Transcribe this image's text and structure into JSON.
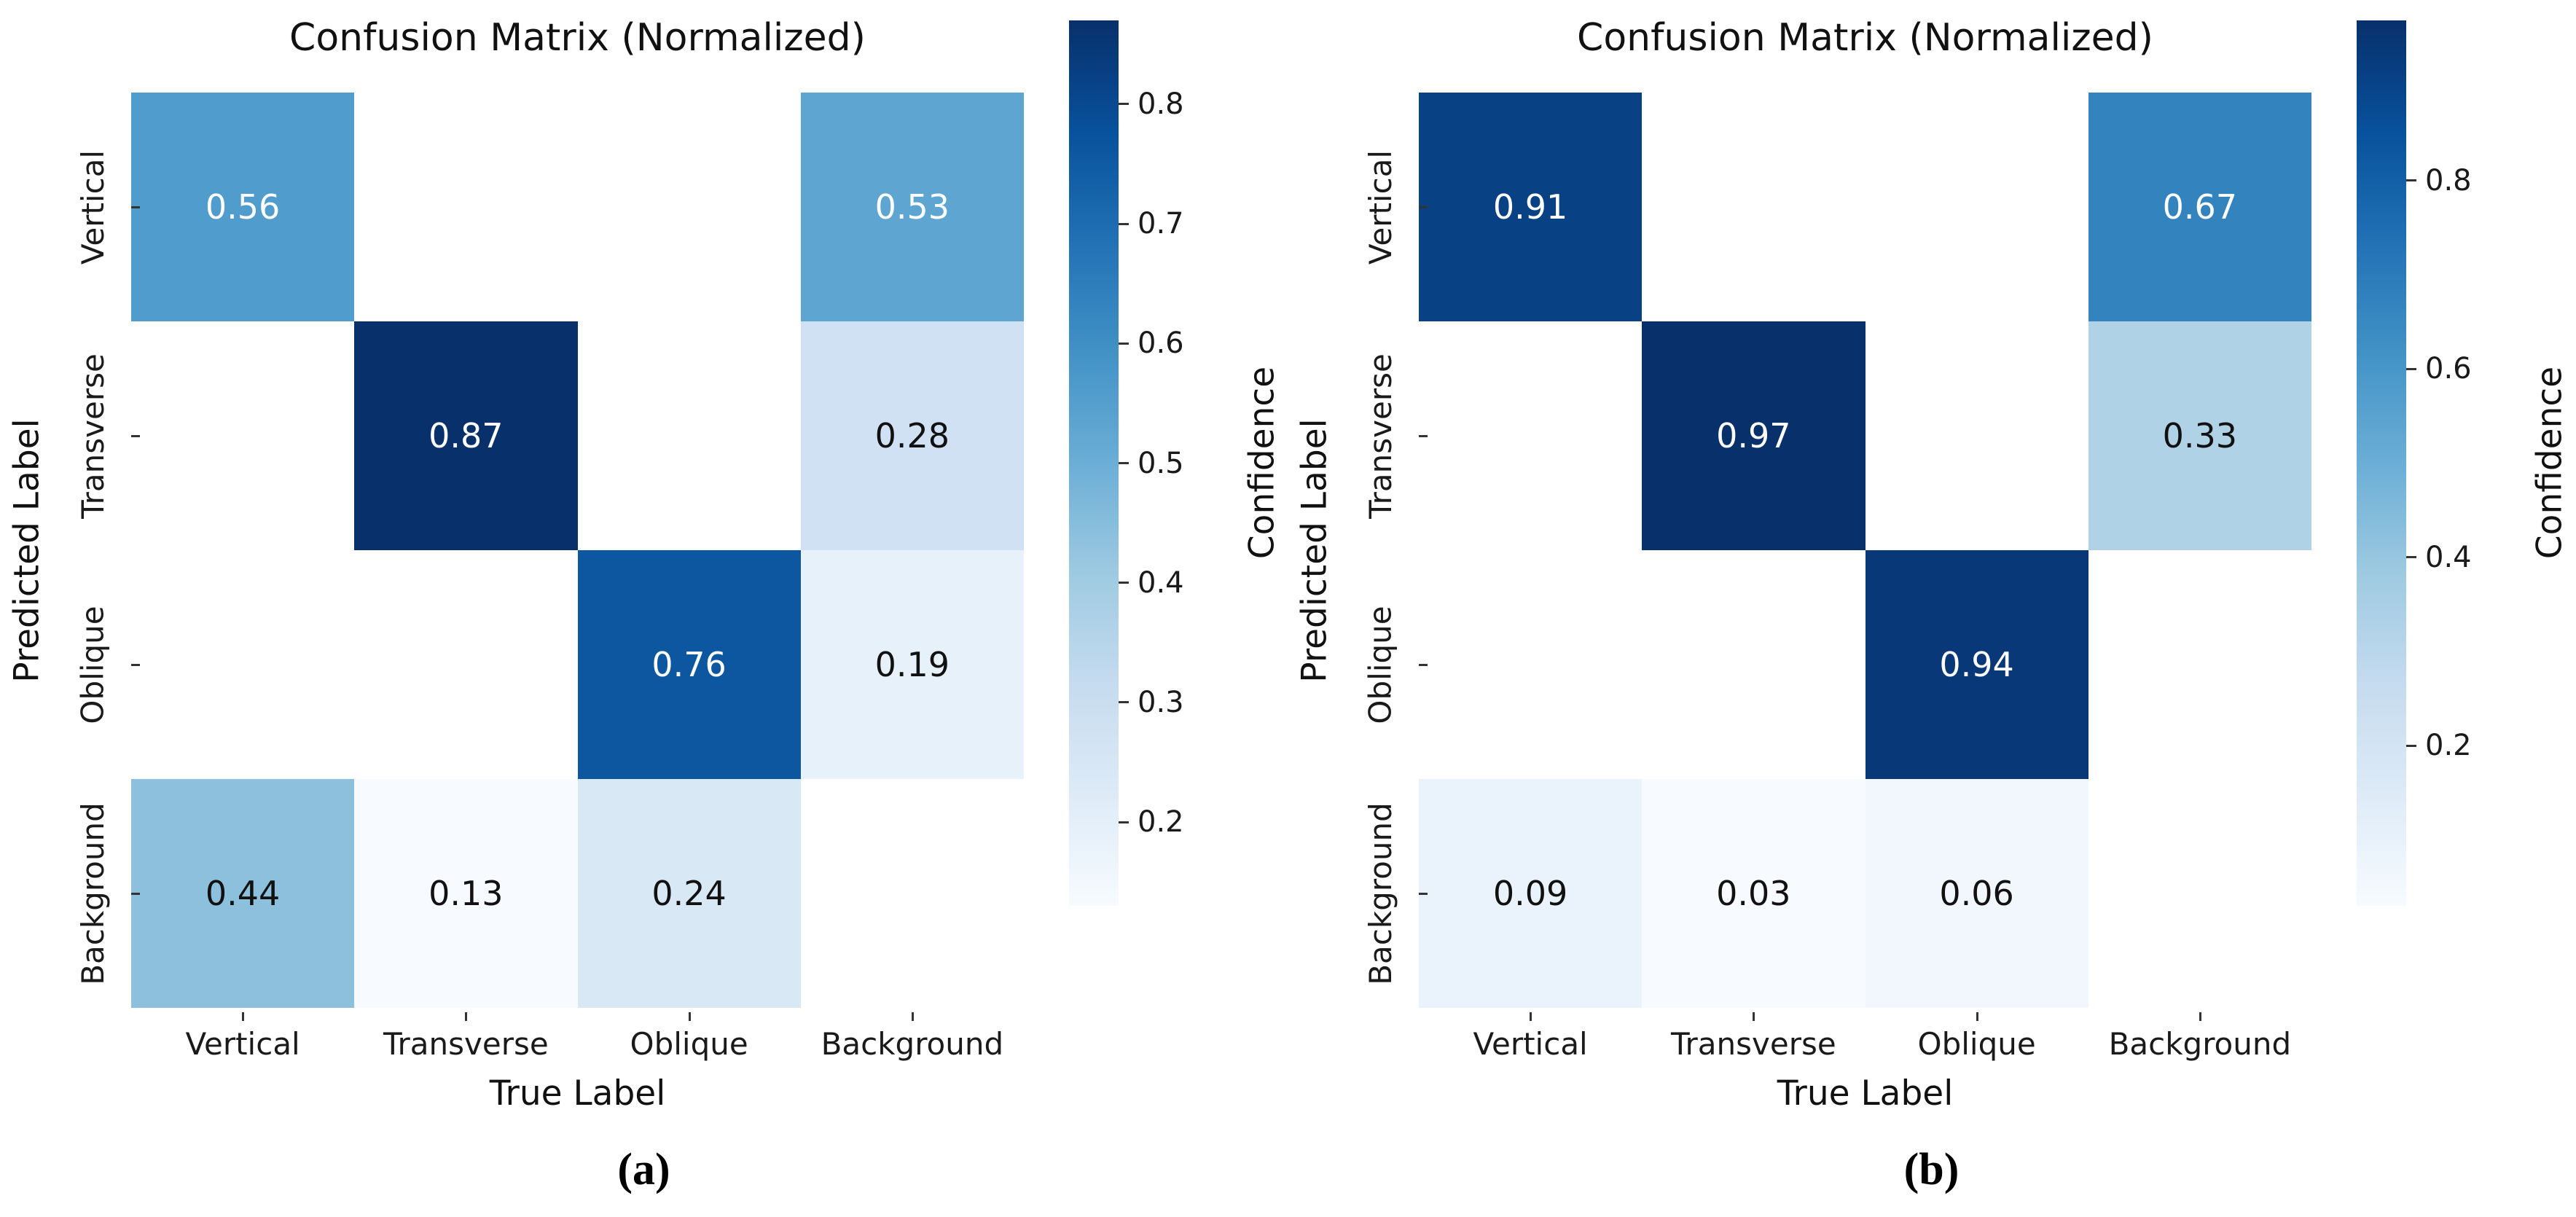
{
  "chart_data": [
    {
      "type": "heatmap",
      "panel_caption": "(a)",
      "title": "Confusion Matrix (Normalized)",
      "xlabel": "True Label",
      "ylabel": "Predicted Label",
      "colorbar_label": "Confidence",
      "x_categories": [
        "Vertical",
        "Transverse",
        "Oblique",
        "Background"
      ],
      "y_categories": [
        "Vertical",
        "Transverse",
        "Oblique",
        "Background"
      ],
      "values": [
        [
          0.56,
          null,
          null,
          0.53
        ],
        [
          null,
          0.87,
          null,
          0.28
        ],
        [
          null,
          null,
          0.76,
          0.19
        ],
        [
          0.44,
          0.13,
          0.24,
          null
        ]
      ],
      "vmin": 0.13,
      "vmax": 0.87,
      "colorbar_ticks": [
        0.8,
        0.7,
        0.6,
        0.5,
        0.4,
        0.3,
        0.2
      ],
      "colormap": "Blues",
      "masked_cell_color": "#ffffff",
      "annotation_text_light": "#ffffff",
      "annotation_text_dark": "#111111"
    },
    {
      "type": "heatmap",
      "panel_caption": "(b)",
      "title": "Confusion Matrix (Normalized)",
      "xlabel": "True Label",
      "ylabel": "Predicted Label",
      "colorbar_label": "Confidence",
      "x_categories": [
        "Vertical",
        "Transverse",
        "Oblique",
        "Background"
      ],
      "y_categories": [
        "Vertical",
        "Transverse",
        "Oblique",
        "Background"
      ],
      "values": [
        [
          0.91,
          null,
          null,
          0.67
        ],
        [
          null,
          0.97,
          null,
          0.33
        ],
        [
          null,
          null,
          0.94,
          null
        ],
        [
          0.09,
          0.03,
          0.06,
          null
        ]
      ],
      "vmin": 0.03,
      "vmax": 0.97,
      "colorbar_ticks": [
        0.8,
        0.6,
        0.4,
        0.2
      ],
      "colormap": "Blues",
      "masked_cell_color": "#ffffff",
      "annotation_text_light": "#ffffff",
      "annotation_text_dark": "#111111"
    }
  ],
  "colormap_blues": {
    "low": "#f7fbff",
    "high": "#08306b"
  }
}
